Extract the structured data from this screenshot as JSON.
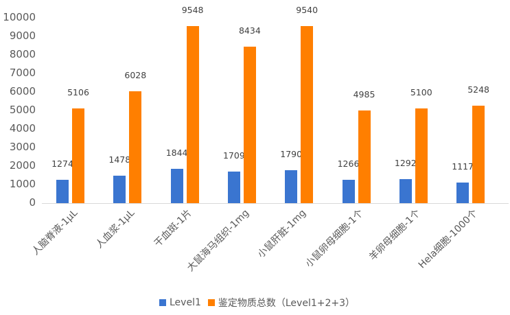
{
  "chart_data": {
    "type": "bar",
    "title": "",
    "xlabel": "",
    "ylabel": "",
    "ylim": [
      0,
      10000
    ],
    "yticks": [
      0,
      1000,
      2000,
      3000,
      4000,
      5000,
      6000,
      7000,
      8000,
      9000,
      10000
    ],
    "grid": false,
    "legend_position": "bottom",
    "categories": [
      "人脑脊液-1μL",
      "人血浆-1μL",
      "干血斑-1片",
      "大鼠海马组织-1mg",
      "小鼠肝脏-1mg",
      "小鼠卵母细胞-1个",
      "羊卵母细胞-1个",
      "Hela细胞-1000个"
    ],
    "series": [
      {
        "name": "Level1",
        "color": "#3a75d0",
        "values": [
          1274,
          1478,
          1844,
          1709,
          1790,
          1266,
          1292,
          1117
        ]
      },
      {
        "name": "鉴定物质总数（Level1+2+3）",
        "color": "#ff7f00",
        "values": [
          5106,
          6028,
          9548,
          8434,
          9540,
          4985,
          5100,
          5248
        ]
      }
    ],
    "data_labels": true
  },
  "legend": {
    "items": [
      {
        "label": "Level1",
        "color": "#3a75d0"
      },
      {
        "label": "鉴定物质总数（Level1+2+3）",
        "color": "#ff7f00"
      }
    ]
  }
}
